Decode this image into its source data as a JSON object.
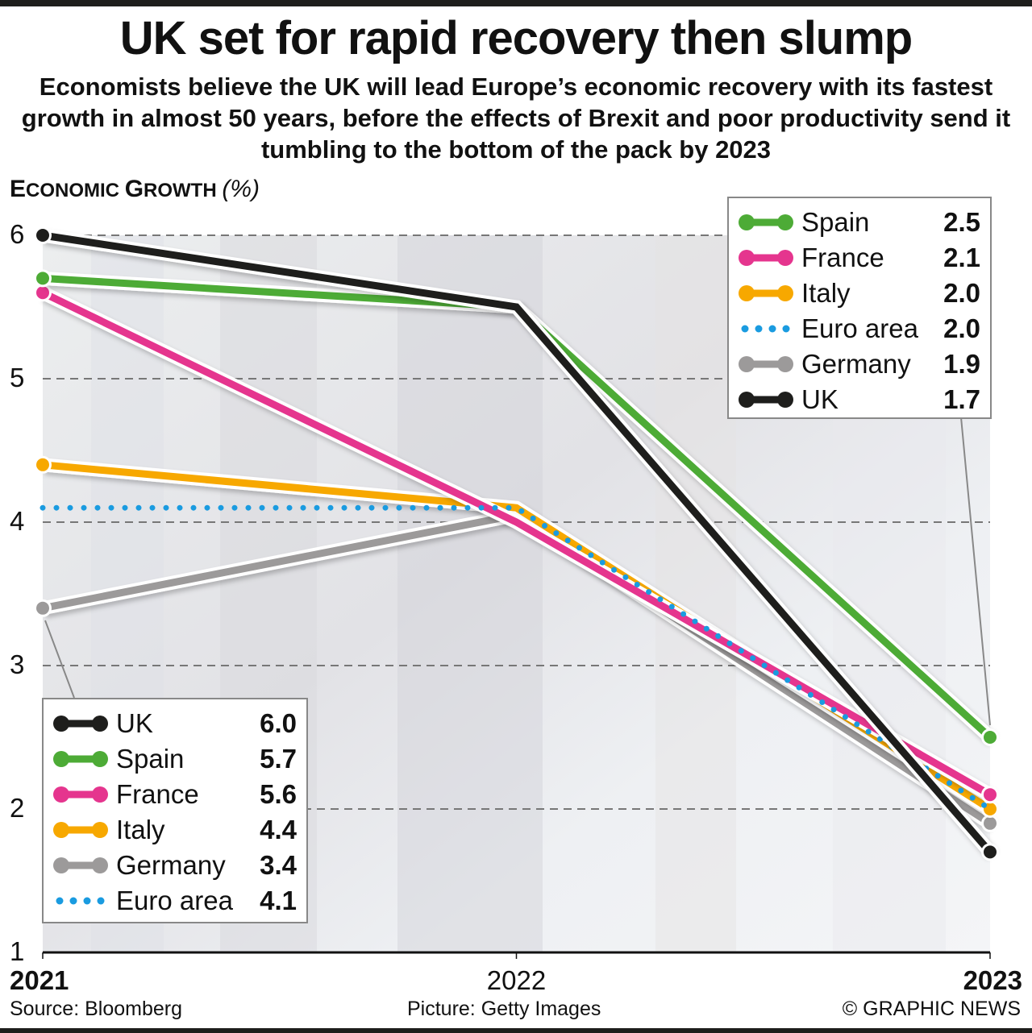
{
  "header": {
    "title": "UK set for rapid recovery then slump",
    "subtitle": "Economists believe the UK will lead Europe’s economic recovery with its fastest growth in almost 50 years, before the effects of Brexit and poor productivity send it tumbling to the bottom of the pack by 2023"
  },
  "axis_title": {
    "first_letter_1": "E",
    "rest_1": "CONOMIC ",
    "first_letter_2": "G",
    "rest_2": "ROWTH ",
    "unit": "(%)"
  },
  "footer": {
    "source": "Source: Bloomberg",
    "picture": "Picture: Getty Images",
    "credit": "© GRAPHIC NEWS"
  },
  "colors": {
    "UK": "#1e1e1c",
    "Spain": "#4dab36",
    "France": "#e5358e",
    "Italy": "#f7a800",
    "Germany": "#9c9a9a",
    "Euro area": "#1a9be0",
    "gridline": "#777777"
  },
  "legend_2021": [
    {
      "name": "UK",
      "value": "6.0"
    },
    {
      "name": "Spain",
      "value": "5.7"
    },
    {
      "name": "France",
      "value": "5.6"
    },
    {
      "name": "Italy",
      "value": "4.4"
    },
    {
      "name": "Germany",
      "value": "3.4"
    },
    {
      "name": "Euro area",
      "value": "4.1"
    }
  ],
  "legend_2023": [
    {
      "name": "Spain",
      "value": "2.5"
    },
    {
      "name": "France",
      "value": "2.1"
    },
    {
      "name": "Italy",
      "value": "2.0"
    },
    {
      "name": "Euro area",
      "value": "2.0"
    },
    {
      "name": "Germany",
      "value": "1.9"
    },
    {
      "name": "UK",
      "value": "1.7"
    }
  ],
  "chart_data": {
    "type": "line",
    "title": "UK set for rapid recovery then slump",
    "xlabel": "",
    "ylabel": "Economic Growth (%)",
    "x": [
      "2021",
      "2022",
      "2023"
    ],
    "ylim": [
      1,
      6
    ],
    "yticks": [
      1,
      2,
      3,
      4,
      5,
      6
    ],
    "grid": true,
    "series": [
      {
        "name": "UK",
        "values": [
          6.0,
          5.5,
          1.7
        ],
        "style": "solid"
      },
      {
        "name": "Spain",
        "values": [
          5.7,
          5.5,
          2.5
        ],
        "style": "solid"
      },
      {
        "name": "France",
        "values": [
          5.6,
          4.0,
          2.1
        ],
        "style": "solid"
      },
      {
        "name": "Italy",
        "values": [
          4.4,
          4.1,
          2.0
        ],
        "style": "solid"
      },
      {
        "name": "Germany",
        "values": [
          3.4,
          4.05,
          1.9
        ],
        "style": "solid"
      },
      {
        "name": "Euro area",
        "values": [
          4.1,
          4.1,
          2.0
        ],
        "style": "dotted"
      }
    ],
    "legend": [
      "left-bottom (2021 values)",
      "top-right (2023 values)"
    ]
  }
}
